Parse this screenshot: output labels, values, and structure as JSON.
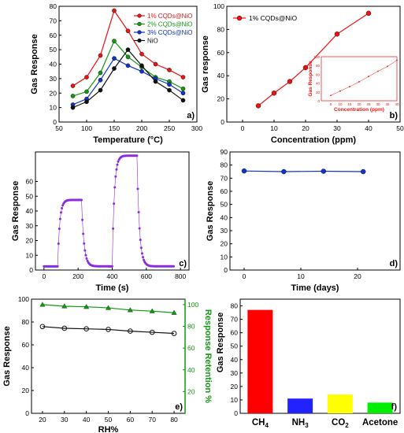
{
  "figure": {
    "colors": {
      "red": "#ee1111",
      "green": "#119911",
      "blue": "#1133cc",
      "black": "#111111",
      "purple": "#8a2be2",
      "yellow": "#ffff00"
    }
  },
  "chart_data": [
    {
      "panel_label": "a)",
      "type": "line",
      "xlabel": "Temperature (°C)",
      "ylabel": "Gas Response",
      "xlim": [
        50,
        300
      ],
      "ylim": [
        0,
        80
      ],
      "xticks": [
        50,
        100,
        150,
        200,
        250,
        300
      ],
      "yticks": [
        0,
        10,
        20,
        30,
        40,
        50,
        60,
        70,
        80
      ],
      "legend": "top-right",
      "x": [
        75,
        100,
        125,
        150,
        175,
        200,
        225,
        250,
        275
      ],
      "series": [
        {
          "name": "1% CQDs@NiO",
          "color": "#ee1111",
          "y": [
            25,
            31,
            46,
            77,
            63,
            47,
            40,
            36,
            31
          ]
        },
        {
          "name": "2% CQDs@NiO",
          "color": "#119911",
          "y": [
            18,
            21,
            34,
            56,
            45,
            38,
            31,
            28,
            23
          ]
        },
        {
          "name": "3% CQDs@NiO",
          "color": "#1133cc",
          "y": [
            12,
            16,
            29,
            44,
            39,
            35,
            30,
            26,
            20
          ]
        },
        {
          "name": "NiO",
          "color": "#111111",
          "y": [
            10,
            14,
            22,
            37,
            50,
            39,
            28,
            22,
            15
          ]
        }
      ]
    },
    {
      "panel_label": "b)",
      "type": "line",
      "xlabel": "Concentration (ppm)",
      "ylabel": "Gas response",
      "xlim": [
        -5,
        50
      ],
      "ylim": [
        0,
        100
      ],
      "xticks": [
        0,
        10,
        20,
        30,
        40,
        50
      ],
      "yticks": [
        0,
        20,
        40,
        60,
        80,
        100
      ],
      "legend": "top-left",
      "series": [
        {
          "name": "1% CQDs@NiO",
          "color": "#ee1111",
          "x": [
            5,
            10,
            15,
            20,
            30,
            40
          ],
          "y": [
            14,
            25,
            35,
            47,
            76,
            94
          ]
        }
      ],
      "inset": {
        "xlabel": "Concentration (ppm)",
        "ylabel": "Gas Response",
        "xlim": [
          0,
          40
        ],
        "ylim": [
          0,
          100
        ],
        "xticks": [
          5,
          10,
          15,
          20,
          25,
          30,
          35,
          40
        ],
        "yticks": [
          0,
          20,
          40,
          60,
          80,
          100
        ],
        "x": [
          5,
          10,
          15,
          20,
          25,
          30,
          35,
          40
        ],
        "y": [
          12,
          22,
          32,
          43,
          55,
          67,
          78,
          92
        ]
      }
    },
    {
      "panel_label": "c)",
      "type": "scatter",
      "xlabel": "Time (s)",
      "ylabel": "Gas Response",
      "xlim": [
        -50,
        850
      ],
      "ylim": [
        0,
        80
      ],
      "xticks": [
        0,
        200,
        400,
        600,
        800
      ],
      "yticks": [
        0,
        10,
        20,
        30,
        40,
        50,
        60
      ],
      "color": "#8a2be2",
      "pulses": [
        {
          "on": 80,
          "off": 220,
          "high": 47.5,
          "base": 2.5,
          "from": 0,
          "to": 380
        },
        {
          "on": 400,
          "off": 545,
          "high": 77.5,
          "base": 2.5,
          "from": 380,
          "to": 760
        }
      ]
    },
    {
      "panel_label": "d)",
      "type": "line",
      "xlabel": "Time (days)",
      "ylabel": "Gas Response",
      "xlim": [
        -2.5,
        27.5
      ],
      "ylim": [
        0,
        90
      ],
      "xticks": [
        0,
        10,
        20
      ],
      "yticks": [
        0,
        10,
        20,
        30,
        40,
        50,
        60,
        70,
        80,
        90
      ],
      "series": [
        {
          "color": "#1133cc",
          "x": [
            0,
            7,
            14,
            21
          ],
          "y": [
            75.5,
            75.0,
            75.3,
            75.0
          ]
        }
      ]
    },
    {
      "panel_label": "e)",
      "type": "line",
      "xlabel": "RH%",
      "ylabel": "Gas Response",
      "y2label": "Response Retention %",
      "xlim": [
        15,
        85
      ],
      "ylim": [
        0,
        100
      ],
      "y2lim": [
        0,
        105
      ],
      "xticks": [
        20,
        30,
        40,
        50,
        60,
        70,
        80
      ],
      "yticks": [
        0,
        20,
        40,
        60,
        80,
        100
      ],
      "y2ticks": [
        20,
        40,
        60,
        80,
        100
      ],
      "x": [
        20,
        30,
        40,
        50,
        60,
        70,
        80
      ],
      "series": [
        {
          "axis": "left",
          "color": "#111111",
          "marker": "circle",
          "y": [
            76,
            74.5,
            74,
            73.5,
            72,
            71,
            70
          ]
        },
        {
          "axis": "right",
          "color": "#119911",
          "marker": "triangle",
          "y": [
            100,
            98.5,
            98,
            97,
            95,
            94,
            92.5
          ]
        }
      ]
    },
    {
      "panel_label": "f)",
      "type": "bar",
      "ylabel": "Gas Response",
      "ylim": [
        0,
        85
      ],
      "yticks": [
        0,
        10,
        20,
        30,
        40,
        50,
        60,
        70,
        80
      ],
      "categories": [
        "CH4",
        "NH3",
        "CO2",
        "Acetone"
      ],
      "values": [
        77,
        11,
        14,
        8
      ],
      "colors": [
        "#ff0000",
        "#2222ff",
        "#ffff00",
        "#00ee00"
      ]
    }
  ]
}
